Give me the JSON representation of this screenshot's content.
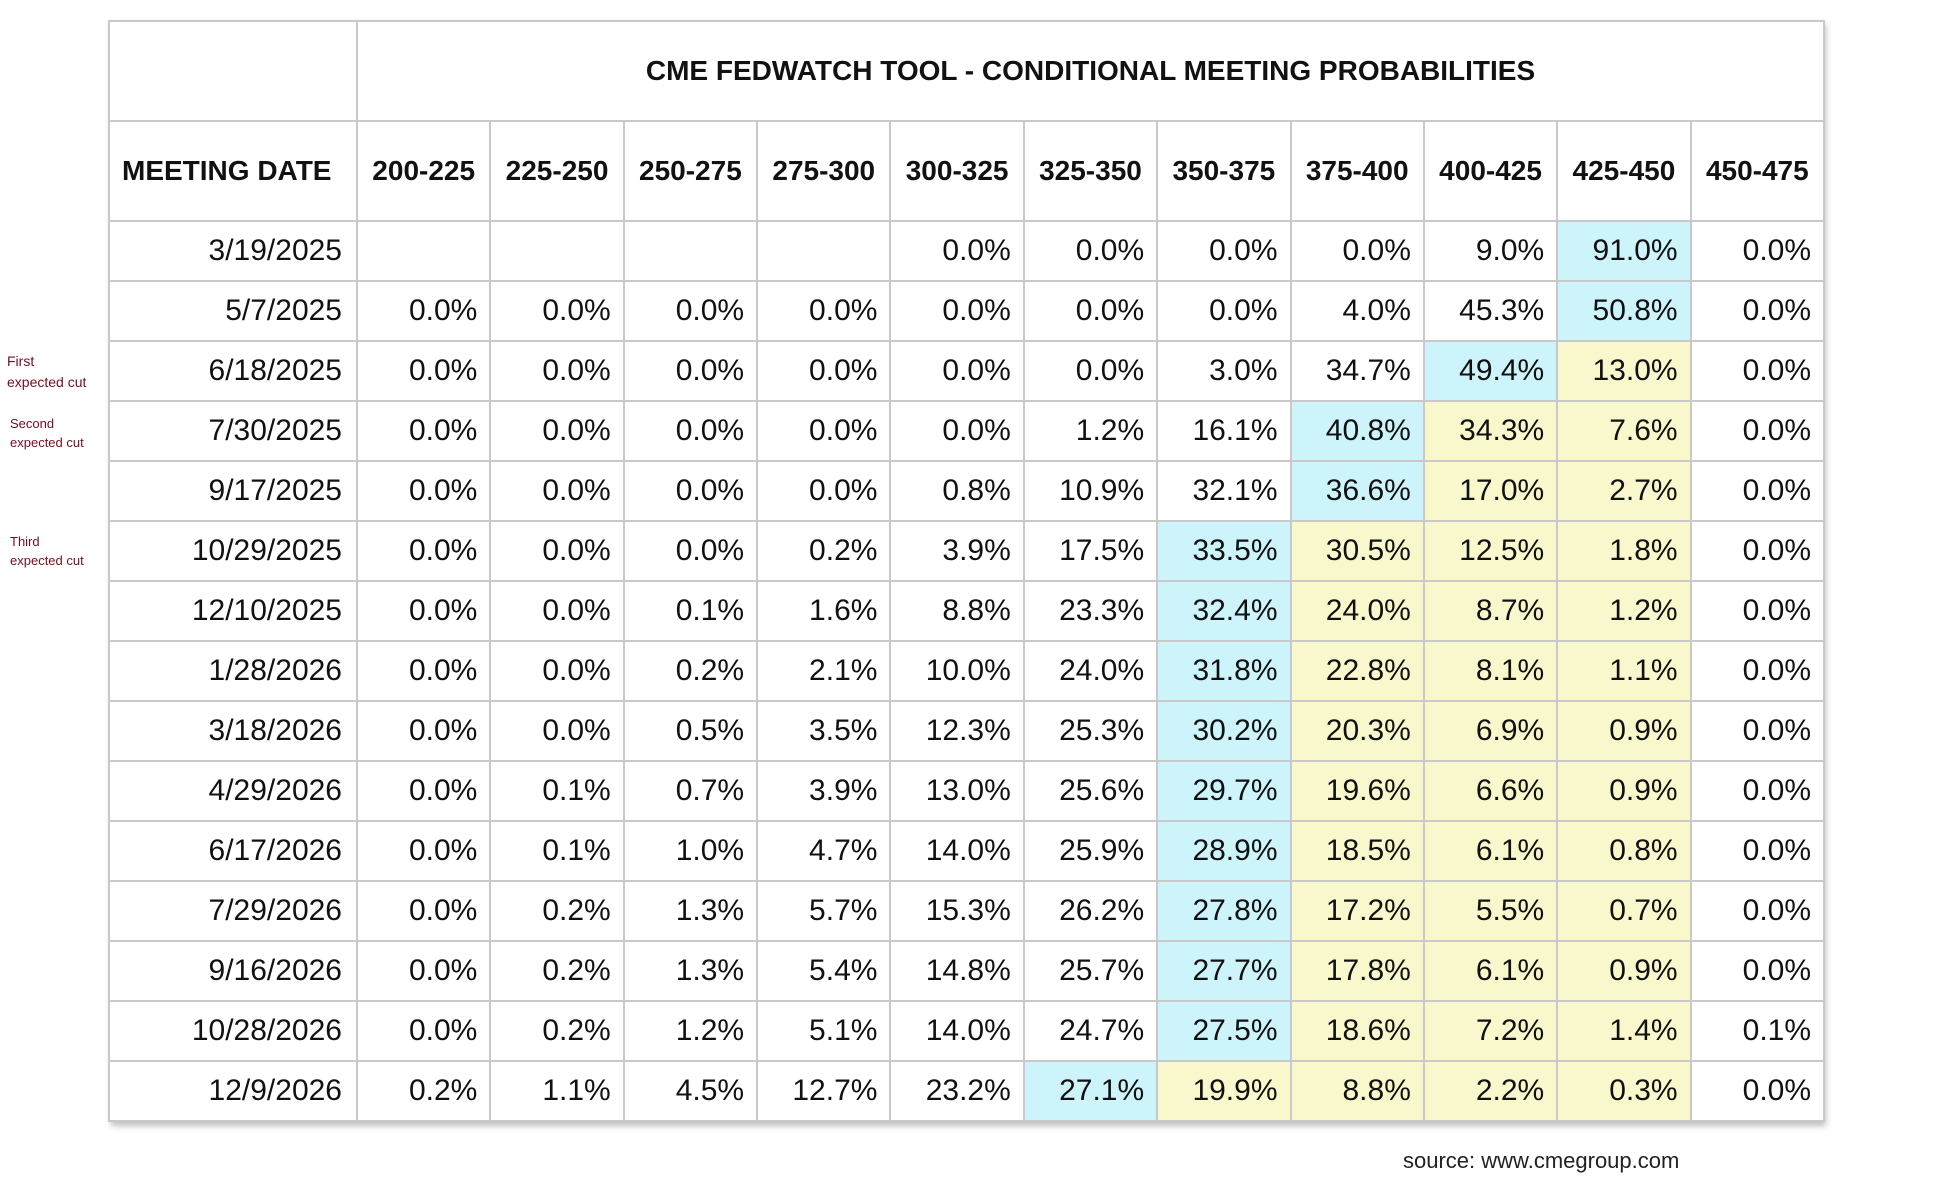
{
  "chart_data": {
    "type": "table",
    "title": "CME FEDWATCH TOOL - CONDITIONAL MEETING PROBABILITIES",
    "date_header": "MEETING DATE",
    "columns": [
      "200-225",
      "225-250",
      "250-275",
      "275-300",
      "300-325",
      "325-350",
      "350-375",
      "375-400",
      "400-425",
      "425-450",
      "450-475"
    ],
    "rows": [
      {
        "date": "3/19/2025",
        "values": [
          "",
          "",
          "",
          "",
          "0.0%",
          "0.0%",
          "0.0%",
          "0.0%",
          "9.0%",
          "91.0%",
          "0.0%"
        ]
      },
      {
        "date": "5/7/2025",
        "values": [
          "0.0%",
          "0.0%",
          "0.0%",
          "0.0%",
          "0.0%",
          "0.0%",
          "0.0%",
          "4.0%",
          "45.3%",
          "50.8%",
          "0.0%"
        ]
      },
      {
        "date": "6/18/2025",
        "values": [
          "0.0%",
          "0.0%",
          "0.0%",
          "0.0%",
          "0.0%",
          "0.0%",
          "3.0%",
          "34.7%",
          "49.4%",
          "13.0%",
          "0.0%"
        ]
      },
      {
        "date": "7/30/2025",
        "values": [
          "0.0%",
          "0.0%",
          "0.0%",
          "0.0%",
          "0.0%",
          "1.2%",
          "16.1%",
          "40.8%",
          "34.3%",
          "7.6%",
          "0.0%"
        ]
      },
      {
        "date": "9/17/2025",
        "values": [
          "0.0%",
          "0.0%",
          "0.0%",
          "0.0%",
          "0.8%",
          "10.9%",
          "32.1%",
          "36.6%",
          "17.0%",
          "2.7%",
          "0.0%"
        ]
      },
      {
        "date": "10/29/2025",
        "values": [
          "0.0%",
          "0.0%",
          "0.0%",
          "0.2%",
          "3.9%",
          "17.5%",
          "33.5%",
          "30.5%",
          "12.5%",
          "1.8%",
          "0.0%"
        ]
      },
      {
        "date": "12/10/2025",
        "values": [
          "0.0%",
          "0.0%",
          "0.1%",
          "1.6%",
          "8.8%",
          "23.3%",
          "32.4%",
          "24.0%",
          "8.7%",
          "1.2%",
          "0.0%"
        ]
      },
      {
        "date": "1/28/2026",
        "values": [
          "0.0%",
          "0.0%",
          "0.2%",
          "2.1%",
          "10.0%",
          "24.0%",
          "31.8%",
          "22.8%",
          "8.1%",
          "1.1%",
          "0.0%"
        ]
      },
      {
        "date": "3/18/2026",
        "values": [
          "0.0%",
          "0.0%",
          "0.5%",
          "3.5%",
          "12.3%",
          "25.3%",
          "30.2%",
          "20.3%",
          "6.9%",
          "0.9%",
          "0.0%"
        ]
      },
      {
        "date": "4/29/2026",
        "values": [
          "0.0%",
          "0.1%",
          "0.7%",
          "3.9%",
          "13.0%",
          "25.6%",
          "29.7%",
          "19.6%",
          "6.6%",
          "0.9%",
          "0.0%"
        ]
      },
      {
        "date": "6/17/2026",
        "values": [
          "0.0%",
          "0.1%",
          "1.0%",
          "4.7%",
          "14.0%",
          "25.9%",
          "28.9%",
          "18.5%",
          "6.1%",
          "0.8%",
          "0.0%"
        ]
      },
      {
        "date": "7/29/2026",
        "values": [
          "0.0%",
          "0.2%",
          "1.3%",
          "5.7%",
          "15.3%",
          "26.2%",
          "27.8%",
          "17.2%",
          "5.5%",
          "0.7%",
          "0.0%"
        ]
      },
      {
        "date": "9/16/2026",
        "values": [
          "0.0%",
          "0.2%",
          "1.3%",
          "5.4%",
          "14.8%",
          "25.7%",
          "27.7%",
          "17.8%",
          "6.1%",
          "0.9%",
          "0.0%"
        ]
      },
      {
        "date": "10/28/2026",
        "values": [
          "0.0%",
          "0.2%",
          "1.2%",
          "5.1%",
          "14.0%",
          "24.7%",
          "27.5%",
          "18.6%",
          "7.2%",
          "1.4%",
          "0.1%"
        ]
      },
      {
        "date": "12/9/2026",
        "values": [
          "0.2%",
          "1.1%",
          "4.5%",
          "12.7%",
          "23.2%",
          "27.1%",
          "19.9%",
          "8.8%",
          "2.2%",
          "0.3%",
          "0.0%"
        ]
      }
    ],
    "highlight_colors": {
      "blue": "#cdf3fb",
      "yellow": "#f9f8cc"
    },
    "highlights": [
      {
        "row": 0,
        "blue": [
          9
        ],
        "yellow": []
      },
      {
        "row": 1,
        "blue": [
          9
        ],
        "yellow": []
      },
      {
        "row": 2,
        "blue": [
          8
        ],
        "yellow": [
          9
        ]
      },
      {
        "row": 3,
        "blue": [
          7
        ],
        "yellow": [
          8,
          9
        ]
      },
      {
        "row": 4,
        "blue": [
          7
        ],
        "yellow": [
          8,
          9
        ]
      },
      {
        "row": 5,
        "blue": [
          6
        ],
        "yellow": [
          7,
          8,
          9
        ]
      },
      {
        "row": 6,
        "blue": [
          6
        ],
        "yellow": [
          7,
          8,
          9
        ]
      },
      {
        "row": 7,
        "blue": [
          6
        ],
        "yellow": [
          7,
          8,
          9
        ]
      },
      {
        "row": 8,
        "blue": [
          6
        ],
        "yellow": [
          7,
          8,
          9
        ]
      },
      {
        "row": 9,
        "blue": [
          6
        ],
        "yellow": [
          7,
          8,
          9
        ]
      },
      {
        "row": 10,
        "blue": [
          6
        ],
        "yellow": [
          7,
          8,
          9
        ]
      },
      {
        "row": 11,
        "blue": [
          6
        ],
        "yellow": [
          7,
          8,
          9
        ]
      },
      {
        "row": 12,
        "blue": [
          6
        ],
        "yellow": [
          7,
          8,
          9
        ]
      },
      {
        "row": 13,
        "blue": [
          6
        ],
        "yellow": [
          7,
          8,
          9
        ]
      },
      {
        "row": 14,
        "blue": [
          5
        ],
        "yellow": [
          6,
          7,
          8,
          9
        ]
      }
    ]
  },
  "annotations": {
    "first": {
      "line1": "First",
      "line2": "expected cut"
    },
    "second": {
      "line1": "Second",
      "line2": "expected cut"
    },
    "third": {
      "line1": "Third",
      "line2": "expected cut"
    },
    "annotation_color": "#7a0c1e"
  },
  "source": "source: www.cmegroup.com"
}
